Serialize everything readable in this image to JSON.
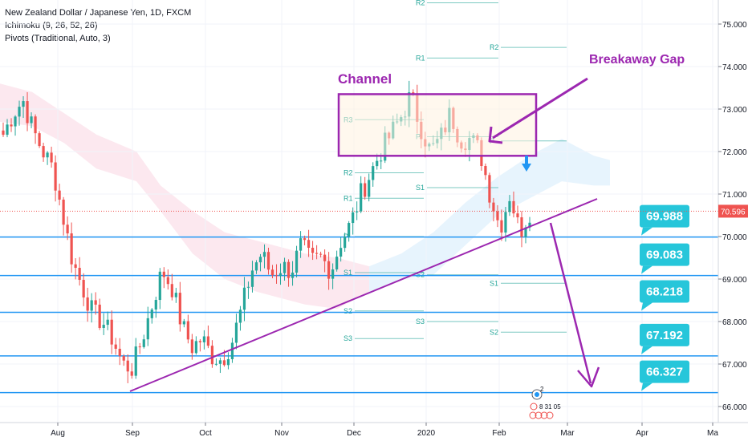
{
  "header": {
    "symbol_line": "New Zealand Dollar / Japanese Yen, 1D, FXCM",
    "indicator1": "Ichimoku (9, 26, 52, 26)",
    "indicator2": "Pivots (Traditional, Auto, 3)"
  },
  "colors": {
    "bull": "#26a69a",
    "bear": "#ef5350",
    "level_line": "#2196f3",
    "badge": "#26c6da",
    "purple": "#9c27b0",
    "pivot": "#26a69a",
    "cloud_red": "#fce4ec",
    "cloud_blue": "#e3f2fd",
    "channel_fill": "#fff3e0",
    "current_price_bg": "#ef5350"
  },
  "price_axis": {
    "ticks": [
      "75.000",
      "74.000",
      "73.000",
      "72.000",
      "71.000",
      "70.000",
      "69.000",
      "68.000",
      "67.000",
      "66.000"
    ],
    "current_price": "70.596"
  },
  "time_axis": {
    "labels": [
      "Aug",
      "Sep",
      "Oct",
      "Nov",
      "Dec",
      "2020",
      "Feb",
      "Mar",
      "Apr",
      "Ma"
    ]
  },
  "annotations": {
    "channel": "Channel",
    "breakaway_gap": "Breakaway Gap"
  },
  "levels": [
    "69.988",
    "69.083",
    "68.218",
    "67.192",
    "66.327"
  ],
  "pivot_labels": {
    "p1": [
      "R3",
      "R2",
      "R1",
      "P",
      "S1",
      "S2",
      "S3"
    ],
    "p2": [
      "R2",
      "R1",
      "P",
      "S1",
      "S2",
      "S3"
    ],
    "p3": [
      "R2",
      "P",
      "S1",
      "S2"
    ]
  },
  "event_marker": {
    "count": "2",
    "line2": "8 31 05"
  },
  "chart_data": {
    "type": "candlestick",
    "title": "New Zealand Dollar / Japanese Yen, 1D, FXCM",
    "ylim": [
      65.7,
      75.5
    ],
    "y_ticks": [
      75,
      74,
      73,
      72,
      71,
      70,
      69,
      68,
      67,
      66
    ],
    "x_labels": [
      "Aug",
      "Sep",
      "Oct",
      "Nov",
      "Dec",
      "2020",
      "Feb",
      "Mar",
      "Apr",
      "Ma"
    ],
    "close_path": [
      72.4,
      72.9,
      73.2,
      72.5,
      72.0,
      71.6,
      70.5,
      69.4,
      68.8,
      68.2,
      68.0,
      67.6,
      67.0,
      66.9,
      67.6,
      68.4,
      69.2,
      68.8,
      67.9,
      67.4,
      67.6,
      67.2,
      67.1,
      67.5,
      68.3,
      69.2,
      69.6,
      69.1,
      69.3,
      69.2,
      69.8,
      69.4,
      69.5,
      69.2,
      69.9,
      70.3,
      71.0,
      71.5,
      72.0,
      72.4,
      72.8,
      73.3,
      72.6,
      72.0,
      72.3,
      72.9,
      72.3,
      72.3,
      72.0,
      71.0,
      70.2,
      71.0,
      70.1,
      70.6
    ],
    "current_price": 70.596,
    "horizontal_levels": [
      69.988,
      69.083,
      68.218,
      67.192,
      66.327
    ],
    "channel": {
      "from_label": "Dec",
      "to_label": "Feb",
      "price_low": 71.9,
      "price_high": 73.35
    },
    "annotations": [
      "Channel",
      "Breakaway Gap"
    ]
  }
}
